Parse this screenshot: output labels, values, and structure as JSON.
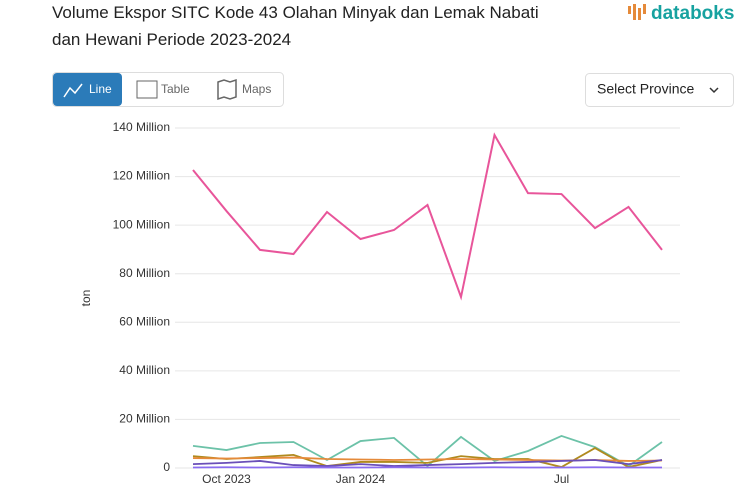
{
  "ui": {
    "logo": "databoks",
    "tabs": [
      "Line",
      "Table",
      "Maps"
    ],
    "select": "Select Province"
  },
  "chart_data": {
    "type": "line",
    "title": "Volume Ekspor SITC Kode 43 Olahan Minyak dan Lemak Nabati dan Hewani Periode 2023-2024",
    "y_label": "ton",
    "categories": [
      null,
      "Oct 2023",
      null,
      null,
      null,
      "Jan 2024",
      null,
      null,
      null,
      null,
      null,
      "Jul",
      null,
      null,
      null
    ],
    "ylim": [
      0,
      140000000
    ],
    "yticks": [
      0,
      {
        "value": 20000000,
        "label": "20 Million"
      },
      {
        "value": 40000000,
        "label": "40 Million"
      },
      {
        "value": 60000000,
        "label": "60 Million"
      },
      {
        "value": 80000000,
        "label": "80 Million"
      },
      {
        "value": 100000000,
        "label": "100 Million"
      },
      {
        "value": 120000000,
        "label": "120 Million"
      },
      {
        "value": 140000000,
        "label": "140 Million"
      }
    ],
    "grid": true,
    "series": [
      {
        "color": "#e8559a",
        "values": [
          122700000,
          105800000,
          89800000,
          88100000,
          105400000,
          94300000,
          98000000,
          108300000,
          70400000,
          137100000,
          113200000,
          112800000,
          98800000,
          107500000,
          89800000
        ]
      },
      {
        "color": "#6cc2a8",
        "values": [
          9100000,
          7400000,
          10300000,
          10700000,
          3300000,
          11100000,
          12400000,
          800000,
          12800000,
          2900000,
          7000000,
          13200000,
          8600000,
          800000,
          10700000
        ]
      },
      {
        "color": "#b08a1e",
        "values": [
          4900000,
          3700000,
          4500000,
          5400000,
          800000,
          2500000,
          2500000,
          2100000,
          4900000,
          3700000,
          3700000,
          400000,
          8200000,
          400000,
          3300000
        ]
      },
      {
        "color": "#e58a3a",
        "values": [
          4100000,
          3900000,
          4100000,
          4300000,
          3700000,
          3500000,
          3300000,
          3500000,
          3700000,
          3500000,
          3300000,
          3100000,
          3300000,
          2900000,
          3100000
        ]
      },
      {
        "color": "#6a4fb8",
        "values": [
          1600000,
          2100000,
          2900000,
          1200000,
          800000,
          1600000,
          800000,
          1200000,
          1600000,
          2100000,
          2500000,
          2900000,
          3300000,
          1600000,
          3300000
        ]
      },
      {
        "color": "#8a6cf0",
        "values": [
          200000,
          300000,
          200000,
          300000,
          200000,
          200000,
          300000,
          200000,
          200000,
          300000,
          200000,
          200000,
          300000,
          200000,
          200000
        ]
      }
    ]
  }
}
